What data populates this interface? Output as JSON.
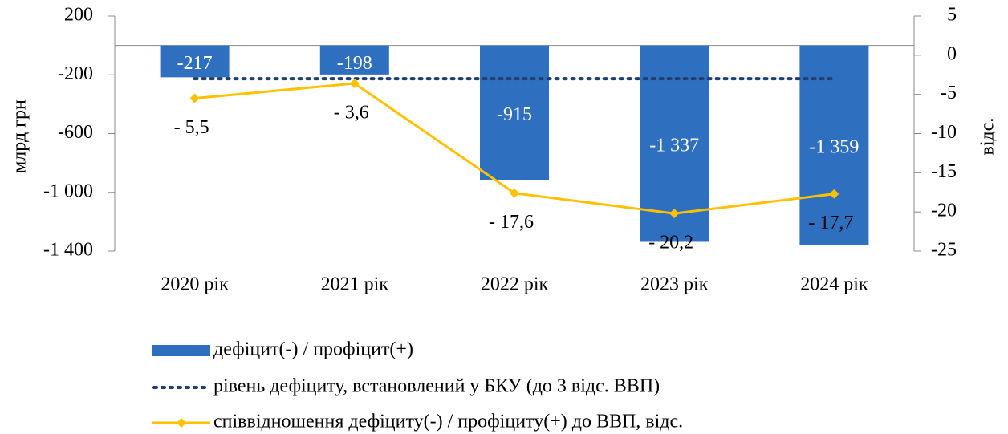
{
  "chart_data": {
    "type": "bar",
    "categories": [
      "2020 рік",
      "2021 рік",
      "2022 рік",
      "2023 рік",
      "2024 рік"
    ],
    "ylabel": "млрд грн",
    "y2label": "відс.",
    "ylim": [
      -1400,
      200
    ],
    "yticks": [
      200,
      -200,
      -600,
      {
        "value": -1000,
        "label": "-1 000"
      },
      {
        "value": -1400,
        "label": "-1 400"
      }
    ],
    "y2lim": [
      -25,
      5
    ],
    "y2ticks": [
      5,
      0,
      -5,
      -10,
      -15,
      -20,
      -25
    ],
    "legend": "bottom",
    "series": [
      {
        "name": "дефіцит(-) / профіцит(+)",
        "type": "bar",
        "color": "#2f6fbf",
        "values": [
          -217,
          -198,
          -915,
          -1337,
          -1359
        ],
        "value_labels": [
          "-217",
          "-198",
          "-915",
          "-1 337",
          "-1 359"
        ]
      },
      {
        "name": "рівень дефіциту, встановлений у БКУ (до 3 відс. ВВП)",
        "type": "dotted-line",
        "axis": "y2",
        "color": "#1f3f73",
        "values": [
          -3,
          -3,
          -3,
          -3,
          -3
        ]
      },
      {
        "name": "співвідношення дефіциту(-) / профіциту(+) до ВВП, відс.",
        "type": "line",
        "axis": "y2",
        "color": "#ffc000",
        "values": [
          -5.5,
          -3.6,
          -17.6,
          -20.2,
          -17.7
        ],
        "value_labels": [
          "- 5,5",
          "- 3,6",
          "- 17,6",
          "- 20,2",
          "- 17,7"
        ]
      }
    ]
  }
}
